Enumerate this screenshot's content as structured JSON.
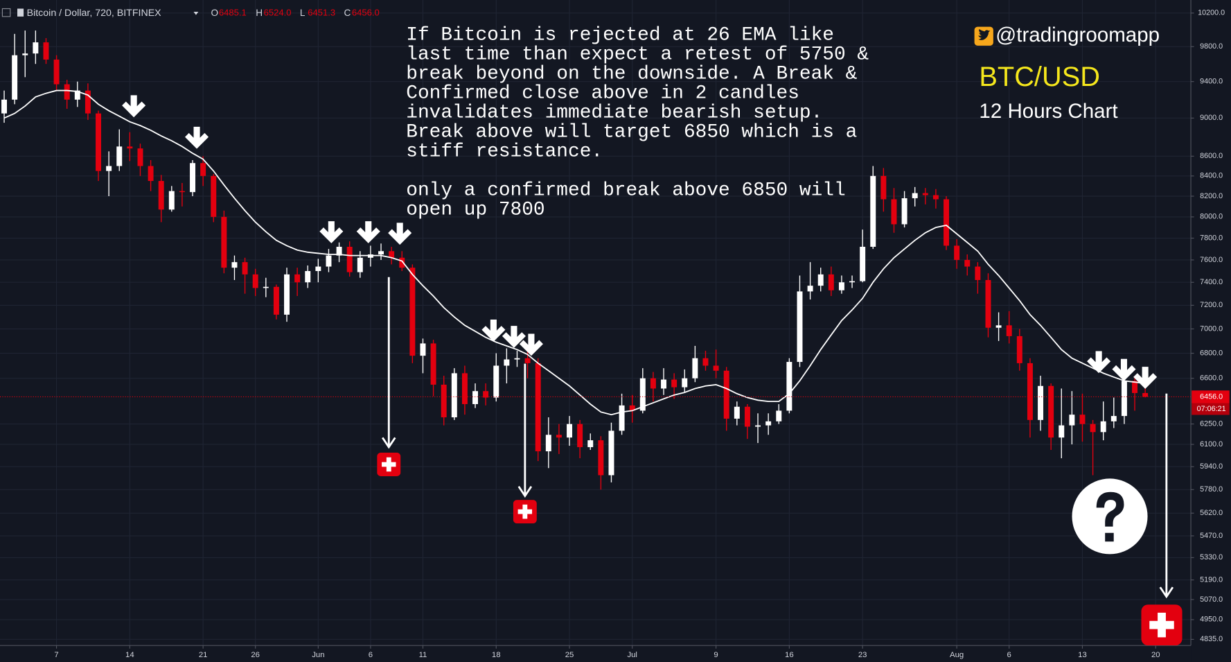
{
  "chart_data": {
    "type": "candlestick",
    "title": "Bitcoin / Dollar, 720, BITFINEX",
    "ohlc_legend": [
      {
        "key": "O",
        "value": "6485.1"
      },
      {
        "key": "H",
        "value": "6524.0"
      },
      {
        "key": "L",
        "value": "6451.3"
      },
      {
        "key": "C",
        "value": "6456.0"
      }
    ],
    "categories": [
      null,
      null,
      null,
      null,
      null,
      null,
      "7",
      null,
      null,
      null,
      null,
      null,
      null,
      "14",
      null,
      null,
      null,
      null,
      null,
      null,
      "21",
      null,
      null,
      null,
      null,
      "26",
      null,
      null,
      null,
      null,
      null,
      "Jun",
      null,
      null,
      null,
      null,
      "6",
      null,
      null,
      null,
      null,
      "11",
      null,
      null,
      null,
      null,
      null,
      null,
      "18",
      null,
      null,
      null,
      null,
      null,
      null,
      "25",
      null,
      null,
      null,
      null,
      null,
      "Jul",
      null,
      null,
      null,
      null,
      null,
      null,
      null,
      "9",
      null,
      null,
      null,
      null,
      null,
      null,
      "16",
      null,
      null,
      null,
      null,
      null,
      null,
      "23",
      null,
      null,
      null,
      null,
      null,
      null,
      null,
      null,
      "Aug",
      null,
      null,
      null,
      null,
      "6",
      null,
      null,
      null,
      null,
      null,
      null,
      "13",
      null,
      null,
      null,
      null,
      null,
      null,
      "20"
    ],
    "open": [
      null,
      9050,
      9200,
      9700,
      9720,
      9850,
      9650,
      9370,
      9200,
      9300,
      9050,
      8450,
      8500,
      8700,
      8680,
      8500,
      8350,
      8070,
      8250,
      8240,
      8530,
      8400,
      8000,
      7530,
      7580,
      7470,
      7350,
      7360,
      7120,
      7470,
      7400,
      7500,
      7540,
      7640,
      7720,
      7490,
      7620,
      7650,
      7680,
      7620,
      7530,
      6780,
      6880,
      6550,
      6300,
      6640,
      6400,
      6500,
      6450,
      6700,
      6750,
      6760,
      6720,
      6050,
      6170,
      6150,
      6250,
      6080,
      6130,
      5880,
      6200,
      6390,
      6350,
      6600,
      6520,
      6590,
      6530,
      6600,
      6760,
      6700,
      6660,
      6290,
      6380,
      6230,
      6240,
      6270,
      6350,
      6730,
      7320,
      7370,
      7470,
      7330,
      7400,
      7410,
      7720,
      8400,
      8170,
      7930,
      8180,
      8230,
      8210,
      8170,
      7730,
      7600,
      7540,
      7420,
      7010,
      7030,
      6940,
      6720,
      6280,
      6540,
      6150,
      6240,
      6320,
      6250,
      6190,
      6270,
      6310,
      6580,
      6485.1,
      null
    ],
    "high": [
      null,
      9300,
      9950,
      9990,
      9990,
      9900,
      9700,
      9420,
      9400,
      9380,
      9080,
      8650,
      8880,
      8850,
      8730,
      8560,
      8410,
      8300,
      8330,
      8560,
      8600,
      8420,
      8060,
      7640,
      7620,
      7520,
      7440,
      7380,
      7530,
      7530,
      7550,
      7610,
      7700,
      7760,
      7770,
      7680,
      7730,
      7750,
      7720,
      7680,
      7560,
      6920,
      6910,
      6620,
      6680,
      6700,
      6560,
      6560,
      6800,
      6840,
      6820,
      6820,
      6760,
      6300,
      6250,
      6310,
      6280,
      6180,
      6160,
      6260,
      6480,
      6470,
      6680,
      6650,
      6680,
      6640,
      6670,
      6860,
      6820,
      6830,
      6690,
      6420,
      6400,
      6330,
      6330,
      6400,
      6760,
      7460,
      7580,
      7530,
      7540,
      7460,
      7460,
      7880,
      8500,
      8480,
      8280,
      8250,
      8290,
      8280,
      8270,
      8200,
      7790,
      7650,
      7580,
      7480,
      7140,
      7150,
      7000,
      6760,
      6620,
      6560,
      6520,
      6500,
      6480,
      6280,
      6420,
      6450,
      6620,
      6620,
      6524,
      null
    ],
    "low": [
      null,
      8950,
      9150,
      9450,
      9600,
      9600,
      9300,
      9100,
      9120,
      8980,
      8350,
      8200,
      8450,
      8550,
      8400,
      8250,
      7950,
      8050,
      8100,
      8200,
      8300,
      7950,
      7480,
      7420,
      7300,
      7280,
      7270,
      7080,
      7060,
      7280,
      7350,
      7400,
      7490,
      7580,
      7450,
      7440,
      7540,
      7600,
      7560,
      7500,
      6720,
      6640,
      6460,
      6240,
      6280,
      6320,
      6370,
      6390,
      6420,
      6560,
      6690,
      6600,
      5980,
      5930,
      6030,
      6090,
      6000,
      6060,
      5780,
      5830,
      6170,
      6260,
      6330,
      6420,
      6470,
      6440,
      6490,
      6570,
      6660,
      6600,
      6200,
      6240,
      6140,
      6110,
      6170,
      6250,
      6330,
      6690,
      7250,
      7320,
      7280,
      7300,
      7350,
      7400,
      7700,
      8050,
      7850,
      7900,
      8100,
      8120,
      8080,
      7690,
      7520,
      7460,
      7300,
      6930,
      6900,
      6880,
      6660,
      6150,
      6200,
      6060,
      6000,
      6100,
      6120,
      5880,
      6130,
      6220,
      6250,
      6350,
      6451.3,
      null
    ],
    "close": [
      null,
      9200,
      9700,
      9720,
      9850,
      9650,
      9370,
      9200,
      9300,
      9050,
      8450,
      8500,
      8700,
      8680,
      8500,
      8350,
      8070,
      8250,
      8240,
      8530,
      8400,
      8000,
      7530,
      7580,
      7470,
      7350,
      7360,
      7120,
      7470,
      7400,
      7500,
      7540,
      7640,
      7720,
      7490,
      7620,
      7650,
      7680,
      7620,
      7530,
      6780,
      6880,
      6550,
      6300,
      6640,
      6400,
      6500,
      6450,
      6700,
      6750,
      6760,
      6720,
      6050,
      6170,
      6150,
      6250,
      6080,
      6130,
      5880,
      6200,
      6390,
      6350,
      6600,
      6520,
      6590,
      6530,
      6600,
      6760,
      6700,
      6660,
      6290,
      6380,
      6230,
      6240,
      6270,
      6350,
      6730,
      7320,
      7370,
      7470,
      7330,
      7400,
      7410,
      7720,
      8400,
      8170,
      7930,
      8180,
      8230,
      8210,
      8170,
      7730,
      7600,
      7540,
      7420,
      7010,
      7030,
      6940,
      6720,
      6280,
      6540,
      6150,
      6240,
      6320,
      6250,
      6190,
      6270,
      6310,
      6580,
      6485.1,
      6456,
      null
    ],
    "up_color": "#ffffff",
    "down_color": "#e3000f",
    "ema": {
      "color": "#ffffff",
      "values": [
        null,
        9000,
        9050,
        9130,
        9230,
        9270,
        9300,
        9300,
        9290,
        9250,
        9150,
        9080,
        9020,
        8960,
        8920,
        8870,
        8810,
        8760,
        8700,
        8630,
        8570,
        8450,
        8310,
        8180,
        8060,
        7950,
        7860,
        7780,
        7730,
        7690,
        7670,
        7660,
        7650,
        7650,
        7640,
        7640,
        7640,
        7640,
        7620,
        7590,
        7470,
        7370,
        7280,
        7180,
        7100,
        7030,
        6980,
        6930,
        6890,
        6860,
        6830,
        6790,
        6720,
        6660,
        6600,
        6540,
        6470,
        6400,
        6340,
        6320,
        6340,
        6350,
        6380,
        6410,
        6440,
        6470,
        6490,
        6520,
        6540,
        6550,
        6520,
        6480,
        6450,
        6430,
        6420,
        6420,
        6480,
        6580,
        6700,
        6830,
        6950,
        7070,
        7160,
        7260,
        7400,
        7520,
        7620,
        7700,
        7780,
        7850,
        7900,
        7920,
        7840,
        7760,
        7680,
        7560,
        7460,
        7350,
        7240,
        7120,
        7030,
        6930,
        6830,
        6760,
        6720,
        6680,
        6640,
        6610,
        6580,
        6570,
        6560,
        null
      ]
    },
    "log_scale": true,
    "grid": true,
    "ylim": [
      4800,
      10360
    ],
    "yticks": [
      {
        "value": 10200,
        "label": "10200.0"
      },
      {
        "value": 9800,
        "label": "9800.0"
      },
      {
        "value": 9400,
        "label": "9400.0"
      },
      {
        "value": 9000,
        "label": "9000.0"
      },
      {
        "value": 8600,
        "label": "8600.0"
      },
      {
        "value": 8400,
        "label": "8400.0"
      },
      {
        "value": 8200,
        "label": "8200.0"
      },
      {
        "value": 8000,
        "label": "8000.0"
      },
      {
        "value": 7800,
        "label": "7800.0"
      },
      {
        "value": 7600,
        "label": "7600.0"
      },
      {
        "value": 7400,
        "label": "7400.0"
      },
      {
        "value": 7200,
        "label": "7200.0"
      },
      {
        "value": 7000,
        "label": "7000.0"
      },
      {
        "value": 6800,
        "label": "6800.0"
      },
      {
        "value": 6600,
        "label": "6600.0"
      },
      {
        "value": 6250,
        "label": "6250.0"
      },
      {
        "value": 6100,
        "label": "6100.0"
      },
      {
        "value": 5940,
        "label": "5940.0"
      },
      {
        "value": 5780,
        "label": "5780.0"
      },
      {
        "value": 5620,
        "label": "5620.0"
      },
      {
        "value": 5470,
        "label": "5470.0"
      },
      {
        "value": 5330,
        "label": "5330.0"
      },
      {
        "value": 5190,
        "label": "5190.0"
      },
      {
        "value": 5070,
        "label": "5070.0"
      },
      {
        "value": 4950,
        "label": "4950.0"
      },
      {
        "value": 4835,
        "label": "4835.0"
      }
    ],
    "last_price": {
      "value": 6456,
      "label": "6456.0"
    },
    "countdown": "07:06:21",
    "note": [
      [
        "If Bitcoin is rejected at 26 EMA like",
        "last time than expect a retest of 5750 &",
        "break beyond on the downside. A Break &",
        "Confirmed close above in 2 candles",
        "invalidates immediate bearish setup.",
        "Break above will target 6850 which is a",
        "stiff resistance."
      ],
      [
        "only a confirmed break above 6850 will",
        "open up 7800"
      ]
    ],
    "handle": "@tradingroomapp",
    "pair": "BTC/USD",
    "timeframe": "12 Hours Chart"
  }
}
